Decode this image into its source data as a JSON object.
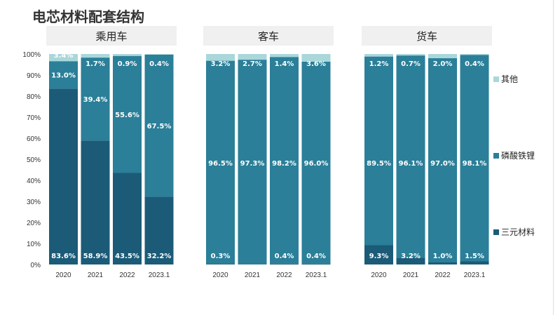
{
  "title": "电芯材料配套结构",
  "chart_data": {
    "type": "bar",
    "stacked": true,
    "title": "电芯材料配套结构",
    "ylim": [
      0,
      100
    ],
    "yticks": [
      "0%",
      "10%",
      "20%",
      "30%",
      "40%",
      "50%",
      "60%",
      "70%",
      "80%",
      "90%",
      "100%"
    ],
    "legend_position": "right",
    "colors": {
      "三元材料": "#1b5b78",
      "磷酸铁锂": "#2b7f98",
      "其他": "#a9d7da"
    },
    "series_order": [
      "三元材料",
      "磷酸铁锂",
      "其他"
    ],
    "groups": [
      {
        "name": "乘用车",
        "categories": [
          "2020",
          "2021",
          "2022",
          "2023.1"
        ],
        "series": [
          {
            "name": "三元材料",
            "values": [
              83.6,
              58.9,
              43.5,
              32.2
            ],
            "labels": [
              "83.6%",
              "58.9%",
              "43.5%",
              "32.2%"
            ]
          },
          {
            "name": "磷酸铁锂",
            "values": [
              13.0,
              39.4,
              55.6,
              67.5
            ],
            "labels": [
              "13.0%",
              "39.4%",
              "55.6%",
              "67.5%"
            ]
          },
          {
            "name": "其他",
            "values": [
              3.4,
              1.7,
              0.9,
              0.4
            ],
            "labels": [
              "3.4%",
              "1.7%",
              "0.9%",
              "0.4%"
            ]
          }
        ]
      },
      {
        "name": "客车",
        "categories": [
          "2020",
          "2021",
          "2022",
          "2023.1"
        ],
        "series": [
          {
            "name": "三元材料",
            "values": [
              0.3,
              0,
              0.4,
              0.4
            ],
            "labels": [
              "0.3%",
              "",
              "0.4%",
              "0.4%"
            ]
          },
          {
            "name": "磷酸铁锂",
            "values": [
              96.5,
              97.3,
              98.2,
              96.0
            ],
            "labels": [
              "96.5%",
              "97.3%",
              "98.2%",
              "96.0%"
            ]
          },
          {
            "name": "其他",
            "values": [
              3.2,
              2.7,
              1.4,
              3.6
            ],
            "labels": [
              "3.2%",
              "2.7%",
              "1.4%",
              "3.6%"
            ]
          }
        ]
      },
      {
        "name": "货车",
        "categories": [
          "2020",
          "2021",
          "2022",
          "2023.1"
        ],
        "series": [
          {
            "name": "三元材料",
            "values": [
              9.3,
              3.2,
              1.0,
              1.5
            ],
            "labels": [
              "9.3%",
              "3.2%",
              "1.0%",
              "1.5%"
            ]
          },
          {
            "name": "磷酸铁锂",
            "values": [
              89.5,
              96.1,
              97.0,
              98.1
            ],
            "labels": [
              "89.5%",
              "96.1%",
              "97.0%",
              "98.1%"
            ]
          },
          {
            "name": "其他",
            "values": [
              1.2,
              0.7,
              2.0,
              0.4
            ],
            "labels": [
              "1.2%",
              "0.7%",
              "2.0%",
              "0.4%"
            ]
          }
        ]
      }
    ],
    "legend": [
      "其他",
      "磷酸铁锂",
      "三元材料"
    ]
  }
}
